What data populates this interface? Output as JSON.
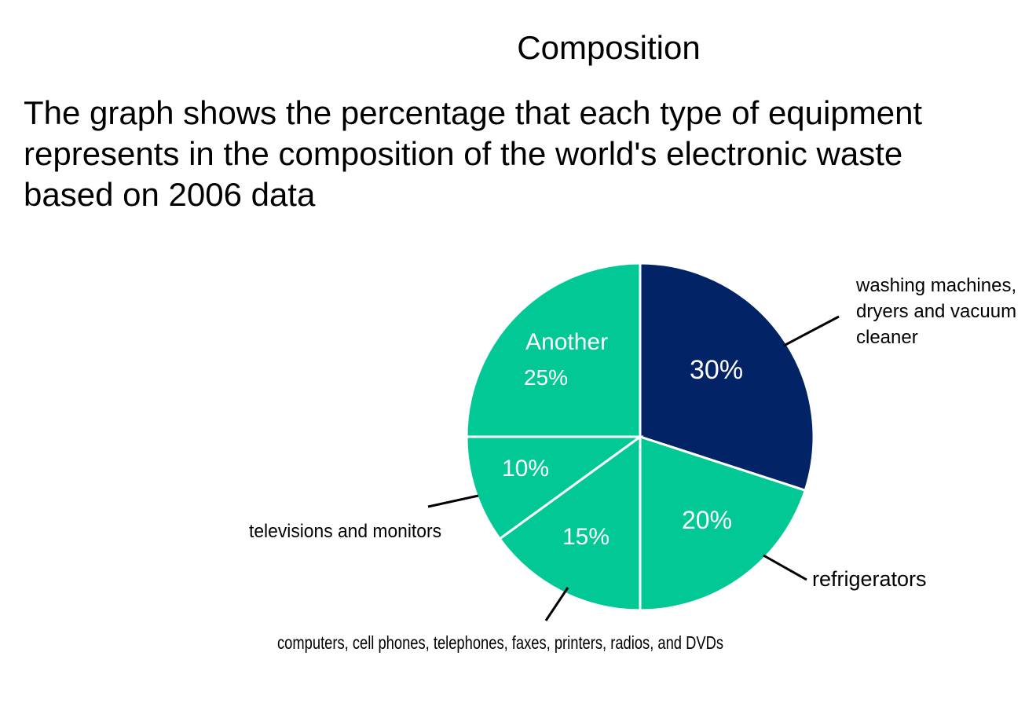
{
  "chart_data": {
    "type": "pie",
    "title": "Composition",
    "subtitle_lines": [
      "The graph shows the percentage that each type of equipment",
      "represents in the composition of the world's electronic waste",
      "based on 2006 data"
    ],
    "slices": [
      {
        "label_lines": [
          "washing machines,",
          "dryers and vacuum",
          "cleaner"
        ],
        "value": 30,
        "value_label": "30%",
        "color": "#022466"
      },
      {
        "label_lines": [
          "refrigerators"
        ],
        "value": 20,
        "value_label": "20%",
        "color": "#02c896"
      },
      {
        "label_lines": [
          "computers, cell phones, telephones, faxes, printers, radios, and DVDs"
        ],
        "value": 15,
        "value_label": "15%",
        "color": "#02c896"
      },
      {
        "label_lines": [
          "televisions and monitors"
        ],
        "value": 10,
        "value_label": "10%",
        "color": "#02c896"
      },
      {
        "label_lines": [
          "Another"
        ],
        "value": 25,
        "value_label": "25%",
        "color": "#02c896",
        "label_inside": true
      }
    ],
    "start_angle_deg": 0,
    "direction": "clockwise",
    "slice_border_color": "#ffffff"
  }
}
